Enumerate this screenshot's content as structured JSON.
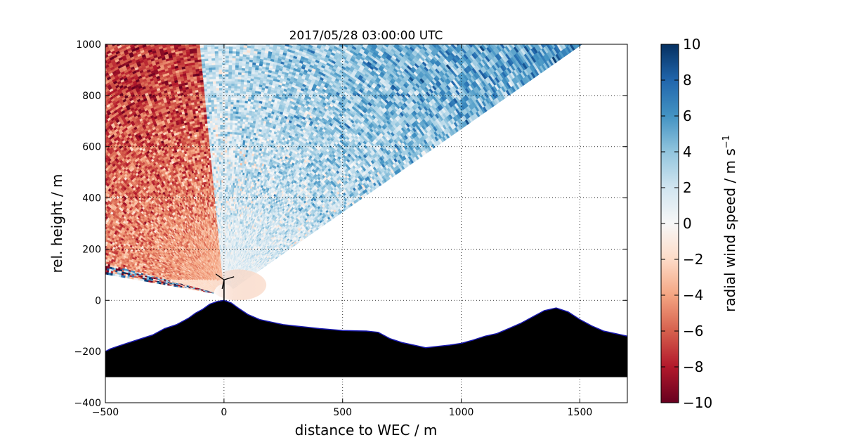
{
  "chart_data": {
    "type": "heatmap",
    "title": "2017/05/28 03:00:00 UTC",
    "xlabel": "distance to WEC / m",
    "ylabel": "rel. height / m",
    "xlim": [
      -500,
      1700
    ],
    "ylim": [
      -400,
      1000
    ],
    "xticks": [
      -500,
      0,
      500,
      1000,
      1500
    ],
    "yticks": [
      -400,
      -200,
      0,
      200,
      400,
      600,
      800,
      1000
    ],
    "grid": true,
    "colorbar": {
      "label": "radial wind speed / m s",
      "label_superscript": "−1",
      "range": [
        -10,
        10
      ],
      "ticks": [
        -10,
        -8,
        -6,
        -4,
        -2,
        0,
        2,
        4,
        6,
        8,
        10
      ],
      "colormap": "RdBu",
      "colors": [
        "#67001f",
        "#b2182b",
        "#d6604d",
        "#f4a582",
        "#fddbc7",
        "#f7f7f7",
        "#d1e5f0",
        "#92c5de",
        "#4393c3",
        "#2166ac",
        "#053061"
      ]
    },
    "scan": {
      "origin": [
        0,
        20
      ],
      "sector_deg": [
        33,
        168
      ],
      "azimuth_split_deg": 96,
      "near_range_m": 45,
      "far_edge": "y = 1000",
      "left_noisy_band_deg": [
        166,
        170
      ]
    },
    "wind_turbine": {
      "x": 0,
      "hub_height": 80,
      "rotor_radius": 42
    },
    "terrain": {
      "x": [
        -500,
        -480,
        -450,
        -400,
        -350,
        -300,
        -250,
        -200,
        -150,
        -120,
        -90,
        -60,
        -30,
        0,
        30,
        60,
        100,
        150,
        200,
        250,
        300,
        400,
        500,
        600,
        650,
        700,
        750,
        800,
        850,
        900,
        950,
        1000,
        1050,
        1100,
        1150,
        1200,
        1250,
        1300,
        1350,
        1400,
        1450,
        1500,
        1550,
        1600,
        1650,
        1700
      ],
      "y": [
        -200,
        -190,
        -180,
        -165,
        -150,
        -135,
        -110,
        -95,
        -70,
        -50,
        -35,
        -15,
        -5,
        0,
        -10,
        -30,
        -55,
        -75,
        -85,
        -95,
        -100,
        -110,
        -118,
        -120,
        -125,
        -150,
        -165,
        -175,
        -185,
        -180,
        -175,
        -168,
        -155,
        -140,
        -130,
        -110,
        -90,
        -65,
        -40,
        -30,
        -45,
        -75,
        -100,
        -120,
        -130,
        -140
      ],
      "base": -300,
      "fill": "#000000",
      "outline": "#1a1ab0"
    }
  }
}
